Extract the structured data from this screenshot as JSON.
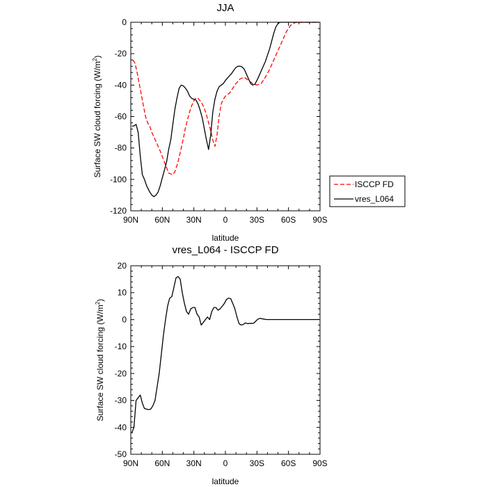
{
  "chart_data": [
    {
      "type": "line",
      "title": "JJA",
      "xlabel": "latitude",
      "ylabel": "Surface SW cloud forcing (W/m²)",
      "ylabel_main": "Surface SW cloud forcing (W/m",
      "ylabel_sup": "2",
      "ylabel_close": ")",
      "xlim": [
        -90,
        90
      ],
      "ylim": [
        -120,
        0
      ],
      "xticks": [
        -90,
        -60,
        -30,
        0,
        30,
        60,
        90
      ],
      "xtick_labels": [
        "90N",
        "60N",
        "30N",
        "0",
        "30S",
        "60S",
        "90S"
      ],
      "yticks": [
        -120,
        -100,
        -80,
        -60,
        -40,
        -20,
        0
      ],
      "ytick_labels": [
        "-120",
        "-100",
        "-80",
        "-60",
        "-40",
        "-20",
        "0"
      ],
      "legend": "outside-right",
      "series": [
        {
          "name": "ISCCP FD",
          "color": "#ff0000",
          "style": "dashed",
          "x": [
            -88,
            -86,
            -84,
            -82,
            -80,
            -78,
            -76,
            -74,
            -72,
            -70,
            -66,
            -62,
            -58,
            -54,
            -50,
            -48,
            -46,
            -44,
            -42,
            -40,
            -38,
            -36,
            -34,
            -32,
            -30,
            -28,
            -26,
            -24,
            -22,
            -20,
            -18,
            -16,
            -14,
            -12,
            -10,
            -8,
            -6,
            -4,
            -2,
            0,
            2,
            4,
            6,
            8,
            10,
            14,
            18,
            22,
            26,
            30,
            34,
            38,
            42,
            46,
            50,
            54,
            58,
            60,
            62,
            64,
            66,
            68,
            70,
            74,
            78,
            82,
            86,
            89
          ],
          "y": [
            -24,
            -26,
            -32,
            -39,
            -46,
            -53,
            -60,
            -64,
            -66,
            -70,
            -76,
            -82,
            -89,
            -96,
            -97,
            -95,
            -91,
            -86,
            -80,
            -74,
            -67,
            -62,
            -57,
            -53,
            -50,
            -48,
            -48.5,
            -50,
            -52,
            -55,
            -59,
            -64,
            -69,
            -75,
            -79,
            -72,
            -60,
            -52,
            -49,
            -47,
            -46,
            -45,
            -43,
            -41,
            -39,
            -36,
            -35,
            -37,
            -39,
            -40,
            -39,
            -35,
            -30,
            -24,
            -18,
            -12,
            -6,
            -4,
            -2,
            -1,
            -0.3,
            0,
            0,
            0,
            0,
            0,
            0,
            0
          ]
        },
        {
          "name": "vres_L064",
          "color": "#000000",
          "style": "solid",
          "x": [
            -89,
            -87,
            -85,
            -83,
            -81,
            -79,
            -77,
            -75,
            -72,
            -70,
            -68,
            -66,
            -64,
            -62,
            -60,
            -58,
            -56,
            -54,
            -52,
            -50,
            -48,
            -46,
            -44,
            -42,
            -40,
            -38,
            -36,
            -34,
            -32,
            -30,
            -28,
            -26,
            -24,
            -22,
            -20,
            -18,
            -16,
            -14,
            -12,
            -10,
            -8,
            -6,
            -4,
            -2,
            0,
            2,
            4,
            6,
            8,
            10,
            12,
            14,
            16,
            18,
            20,
            22,
            24,
            26,
            28,
            30,
            32,
            34,
            36,
            38,
            40,
            42,
            44,
            46,
            48,
            50,
            52,
            54,
            56,
            58,
            60,
            62,
            64,
            66,
            68,
            70,
            72,
            74,
            78,
            82,
            86,
            89
          ],
          "y": [
            -66,
            -66,
            -65,
            -70,
            -85,
            -97,
            -100,
            -104,
            -108,
            -110,
            -111,
            -110,
            -108,
            -104,
            -99,
            -94,
            -89,
            -81,
            -75,
            -65,
            -55,
            -48,
            -42,
            -40,
            -40.5,
            -42,
            -44,
            -47,
            -48.5,
            -49,
            -49.5,
            -52,
            -56,
            -61,
            -68,
            -75,
            -81,
            -72,
            -57,
            -49,
            -44,
            -41,
            -40,
            -39,
            -37,
            -35.5,
            -34,
            -32.5,
            -30.5,
            -28.8,
            -28,
            -28,
            -28.5,
            -30,
            -33,
            -36,
            -39,
            -40,
            -39.5,
            -37,
            -34,
            -31,
            -28,
            -25,
            -21,
            -17,
            -12,
            -7,
            -3,
            -0.8,
            0,
            0,
            0,
            0,
            0,
            0,
            0,
            0,
            0,
            0,
            0,
            0,
            0,
            0,
            0,
            0
          ]
        }
      ]
    },
    {
      "type": "line",
      "title": "vres_L064 - ISCCP FD",
      "xlabel": "latitude",
      "ylabel": "Surface SW cloud forcing (W/m²)",
      "ylabel_main": "Surface SW cloud forcing (W/m",
      "ylabel_sup": "2",
      "ylabel_close": ")",
      "xlim": [
        -90,
        90
      ],
      "ylim": [
        -50,
        20
      ],
      "xticks": [
        -90,
        -60,
        -30,
        0,
        30,
        60,
        90
      ],
      "xtick_labels": [
        "90N",
        "60N",
        "30N",
        "0",
        "30S",
        "60S",
        "90S"
      ],
      "yticks": [
        -50,
        -40,
        -30,
        -20,
        -10,
        0,
        10,
        20
      ],
      "ytick_labels": [
        "-50",
        "-40",
        "-30",
        "-20",
        "-10",
        "0",
        "10",
        "20"
      ],
      "series": [
        {
          "color": "#000000",
          "style": "solid",
          "x": [
            -89,
            -87,
            -85,
            -83,
            -81,
            -79,
            -77,
            -75,
            -73,
            -71,
            -69,
            -67,
            -65,
            -63,
            -61,
            -59,
            -57,
            -55,
            -53,
            -51,
            -49,
            -47,
            -45,
            -43,
            -41,
            -39,
            -37,
            -35,
            -33,
            -31,
            -29,
            -27,
            -25,
            -23,
            -21,
            -19,
            -17,
            -15,
            -13,
            -11,
            -9,
            -7,
            -5,
            -3,
            -1,
            1,
            3,
            5,
            7,
            9,
            11,
            13,
            15,
            17,
            19,
            21,
            23,
            25,
            27,
            29,
            31,
            33,
            35,
            37,
            39,
            41,
            43,
            45,
            47,
            49,
            51,
            53,
            55,
            57,
            59,
            61,
            63,
            65,
            67,
            69,
            71,
            75,
            79,
            83,
            87,
            89
          ],
          "y": [
            -42,
            -40,
            -30,
            -29,
            -28,
            -31,
            -33,
            -33.2,
            -33.4,
            -33.2,
            -32,
            -30,
            -25,
            -20,
            -13,
            -6,
            0,
            5,
            8,
            8.5,
            12,
            15.5,
            16,
            15,
            10,
            6,
            3,
            2,
            4,
            4.5,
            4.5,
            2,
            1,
            -2,
            -1,
            0,
            1,
            0,
            3,
            4.5,
            4.5,
            3.5,
            4,
            5,
            6,
            7.5,
            8,
            7.8,
            6,
            4,
            1,
            -1.5,
            -2,
            -1.8,
            -1.2,
            -1.5,
            -1.4,
            -1.4,
            -1.3,
            -0.5,
            0.2,
            0.5,
            0.3,
            0.2,
            0,
            0,
            0,
            0,
            0,
            0,
            0,
            0,
            0,
            0,
            0,
            0,
            0,
            0,
            0,
            0,
            0,
            0,
            0,
            0,
            0,
            0
          ]
        }
      ]
    }
  ]
}
